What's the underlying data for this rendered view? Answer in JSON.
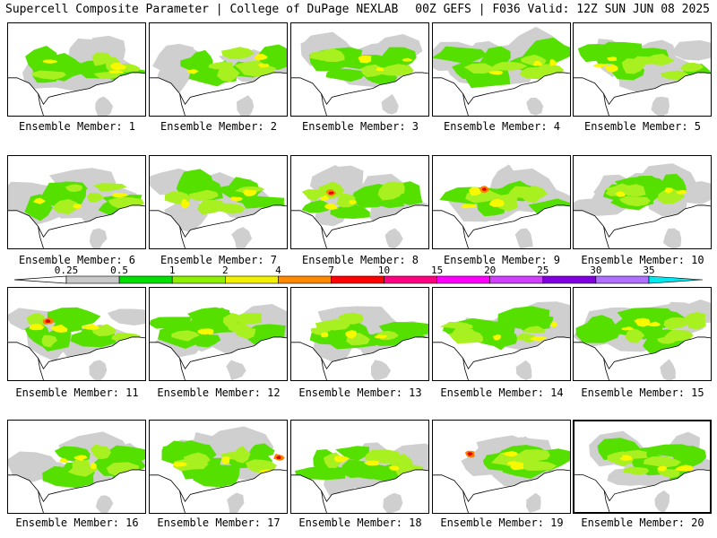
{
  "header": {
    "title_left": "Supercell Composite Parameter | College of DuPage NEXLAB",
    "title_right": "00Z GEFS | F036 Valid: 12Z SUN JUN 08 2025"
  },
  "panels": [
    {
      "member": 1,
      "caption": "Ensemble Member: 1"
    },
    {
      "member": 2,
      "caption": "Ensemble Member: 2"
    },
    {
      "member": 3,
      "caption": "Ensemble Member: 3"
    },
    {
      "member": 4,
      "caption": "Ensemble Member: 4"
    },
    {
      "member": 5,
      "caption": "Ensemble Member: 5"
    },
    {
      "member": 6,
      "caption": "Ensemble Member: 6"
    },
    {
      "member": 7,
      "caption": "Ensemble Member: 7"
    },
    {
      "member": 8,
      "caption": "Ensemble Member: 8"
    },
    {
      "member": 9,
      "caption": "Ensemble Member: 9"
    },
    {
      "member": 10,
      "caption": "Ensemble Member: 10"
    },
    {
      "member": 11,
      "caption": "Ensemble Member: 11"
    },
    {
      "member": 12,
      "caption": "Ensemble Member: 12"
    },
    {
      "member": 13,
      "caption": "Ensemble Member: 13"
    },
    {
      "member": 14,
      "caption": "Ensemble Member: 14"
    },
    {
      "member": 15,
      "caption": "Ensemble Member: 15"
    },
    {
      "member": 16,
      "caption": "Ensemble Member: 16"
    },
    {
      "member": 17,
      "caption": "Ensemble Member: 17"
    },
    {
      "member": 18,
      "caption": "Ensemble Member: 18"
    },
    {
      "member": 19,
      "caption": "Ensemble Member: 19"
    },
    {
      "member": 20,
      "caption": "Ensemble Member: 20",
      "selected": true
    }
  ],
  "legend": {
    "labels": [
      "0.25",
      "0.5",
      "1",
      "2",
      "4",
      "7",
      "10",
      "15",
      "20",
      "25",
      "30",
      "35"
    ],
    "colors": [
      "#c8c8c8",
      "#00e000",
      "#8cf000",
      "#f0f000",
      "#ff8a00",
      "#ff0000",
      "#ff0080",
      "#ff00ff",
      "#d040ff",
      "#8000e0",
      "#b070ff",
      "#00e8f0"
    ]
  },
  "colors": {
    "gray": "#cfcfcf",
    "green": "#55e000",
    "lightgreen": "#a8f020",
    "yellow": "#f8f800",
    "orange": "#ff8000",
    "red": "#e00000"
  }
}
